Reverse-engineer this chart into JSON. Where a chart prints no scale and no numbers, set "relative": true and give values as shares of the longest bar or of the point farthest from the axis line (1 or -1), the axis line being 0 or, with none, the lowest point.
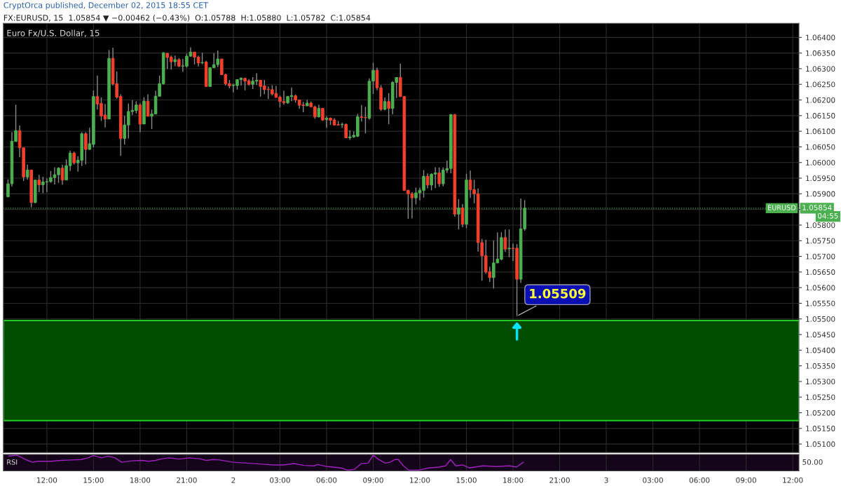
{
  "chart_data": [
    {
      "type": "candlestick",
      "title": "Euro Fx/U.S. Dollar, 15",
      "subtitle": "FX:EURUSD, 15  1.05854 ▼ −0.00462 (−0.43%)  O:1.05788  H:1.05880  L:1.05782  C:1.05854",
      "annotations": [
        "CryptOrca published, December 02, 2015 18:55 CET",
        "1.05854",
        "04:55",
        {
          "text": "1.05509",
          "x": "2015-12-02T18:15",
          "y": 1.05509
        }
      ],
      "x": [
        "2015-12-01T09:30",
        "2015-12-01T09:45",
        "2015-12-01T10:00",
        "2015-12-01T10:15",
        "2015-12-01T10:30",
        "2015-12-01T10:45",
        "2015-12-01T11:00",
        "2015-12-01T11:15",
        "2015-12-01T11:30",
        "2015-12-01T11:45",
        "2015-12-01T12:00",
        "2015-12-01T12:15",
        "2015-12-01T12:30",
        "2015-12-01T12:45",
        "2015-12-01T13:00",
        "2015-12-01T13:15",
        "2015-12-01T13:30",
        "2015-12-01T13:45",
        "2015-12-01T14:00",
        "2015-12-01T14:15",
        "2015-12-01T14:30",
        "2015-12-01T14:45",
        "2015-12-01T15:00",
        "2015-12-01T15:15",
        "2015-12-01T15:30",
        "2015-12-01T15:45",
        "2015-12-01T16:00",
        "2015-12-01T16:15",
        "2015-12-01T16:30",
        "2015-12-01T16:45",
        "2015-12-01T17:00",
        "2015-12-01T17:15",
        "2015-12-01T17:30",
        "2015-12-01T17:45",
        "2015-12-01T18:00",
        "2015-12-01T18:15",
        "2015-12-01T18:30",
        "2015-12-01T18:45",
        "2015-12-01T19:00",
        "2015-12-01T19:15",
        "2015-12-01T19:30",
        "2015-12-01T19:45",
        "2015-12-01T20:00",
        "2015-12-01T20:15",
        "2015-12-01T20:30",
        "2015-12-01T20:45",
        "2015-12-01T21:00",
        "2015-12-01T21:15",
        "2015-12-01T21:30",
        "2015-12-01T21:45",
        "2015-12-01T22:00",
        "2015-12-01T22:15",
        "2015-12-01T22:30",
        "2015-12-01T22:45",
        "2015-12-01T23:00",
        "2015-12-01T23:15",
        "2015-12-01T23:30",
        "2015-12-01T23:45",
        "2015-12-02T00:00",
        "2015-12-02T00:15",
        "2015-12-02T00:30",
        "2015-12-02T00:45",
        "2015-12-02T01:00",
        "2015-12-02T01:15",
        "2015-12-02T01:30",
        "2015-12-02T01:45",
        "2015-12-02T02:00",
        "2015-12-02T02:15",
        "2015-12-02T02:30",
        "2015-12-02T02:45",
        "2015-12-02T03:00",
        "2015-12-02T03:15",
        "2015-12-02T03:30",
        "2015-12-02T03:45",
        "2015-12-02T04:00",
        "2015-12-02T04:15",
        "2015-12-02T04:30",
        "2015-12-02T04:45",
        "2015-12-02T05:00",
        "2015-12-02T05:15",
        "2015-12-02T05:30",
        "2015-12-02T05:45",
        "2015-12-02T06:00",
        "2015-12-02T06:15",
        "2015-12-02T06:30",
        "2015-12-02T06:45",
        "2015-12-02T07:00",
        "2015-12-02T07:15",
        "2015-12-02T07:30",
        "2015-12-02T07:45",
        "2015-12-02T08:00",
        "2015-12-02T08:15",
        "2015-12-02T08:30",
        "2015-12-02T08:45",
        "2015-12-02T09:00",
        "2015-12-02T09:15",
        "2015-12-02T09:30",
        "2015-12-02T09:45",
        "2015-12-02T10:00",
        "2015-12-02T10:15",
        "2015-12-02T10:30",
        "2015-12-02T10:45",
        "2015-12-02T11:00",
        "2015-12-02T11:15",
        "2015-12-02T11:30",
        "2015-12-02T11:45",
        "2015-12-02T12:00",
        "2015-12-02T12:15",
        "2015-12-02T12:30",
        "2015-12-02T12:45",
        "2015-12-02T13:00",
        "2015-12-02T13:15",
        "2015-12-02T13:30",
        "2015-12-02T13:45",
        "2015-12-02T14:00",
        "2015-12-02T14:15",
        "2015-12-02T14:30",
        "2015-12-02T14:45",
        "2015-12-02T15:00",
        "2015-12-02T15:15",
        "2015-12-02T15:30",
        "2015-12-02T15:45",
        "2015-12-02T16:00",
        "2015-12-02T16:15",
        "2015-12-02T16:30",
        "2015-12-02T16:45",
        "2015-12-02T17:00",
        "2015-12-02T17:15",
        "2015-12-02T17:30",
        "2015-12-02T17:45",
        "2015-12-02T18:00",
        "2015-12-02T18:15",
        "2015-12-02T18:30",
        "2015-12-02T18:45"
      ],
      "ohlc": [
        [
          1.0589,
          1.05946,
          1.0589,
          1.05932
        ],
        [
          1.05932,
          1.06097,
          1.05923,
          1.06068
        ],
        [
          1.06067,
          1.06185,
          1.06067,
          1.06102
        ],
        [
          1.06102,
          1.06118,
          1.06017,
          1.06047
        ],
        [
          1.06047,
          1.06047,
          1.05941,
          1.05954
        ],
        [
          1.05954,
          1.05993,
          1.05945,
          1.05976
        ],
        [
          1.05976,
          1.05976,
          1.05857,
          1.05872
        ],
        [
          1.05872,
          1.05944,
          1.0587,
          1.05944
        ],
        [
          1.05944,
          1.05961,
          1.05905,
          1.05929
        ],
        [
          1.05929,
          1.05954,
          1.05902,
          1.05938
        ],
        [
          1.05938,
          1.05949,
          1.05905,
          1.05939
        ],
        [
          1.05939,
          1.05973,
          1.05935,
          1.05952
        ],
        [
          1.05952,
          1.05984,
          1.0593,
          1.05961
        ],
        [
          1.05961,
          1.05985,
          1.05935,
          1.05982
        ],
        [
          1.05982,
          1.05993,
          1.05929,
          1.05944
        ],
        [
          1.05944,
          1.0601,
          1.05944,
          1.0599
        ],
        [
          1.0599,
          1.06038,
          1.05973,
          1.0603
        ],
        [
          1.0603,
          1.06035,
          1.05994,
          1.05999
        ],
        [
          1.05999,
          1.0602,
          1.05971,
          1.06007
        ],
        [
          1.06007,
          1.06097,
          1.05989,
          1.06092
        ],
        [
          1.06092,
          1.06097,
          1.05994,
          1.06042
        ],
        [
          1.06042,
          1.06111,
          1.0604,
          1.0606
        ],
        [
          1.06058,
          1.0623,
          1.06049,
          1.06211
        ],
        [
          1.06211,
          1.06278,
          1.06169,
          1.06187
        ],
        [
          1.06189,
          1.06208,
          1.06133,
          1.06149
        ],
        [
          1.06152,
          1.06187,
          1.06112,
          1.06139
        ],
        [
          1.06139,
          1.0636,
          1.06139,
          1.06333
        ],
        [
          1.06333,
          1.06367,
          1.06246,
          1.06251
        ],
        [
          1.06252,
          1.06291,
          1.06204,
          1.06209
        ],
        [
          1.06211,
          1.06218,
          1.06021,
          1.06077
        ],
        [
          1.06077,
          1.06149,
          1.06057,
          1.0612
        ],
        [
          1.0612,
          1.06189,
          1.06077,
          1.06163
        ],
        [
          1.06163,
          1.06199,
          1.06152,
          1.06167
        ],
        [
          1.06166,
          1.06196,
          1.06157,
          1.06184
        ],
        [
          1.06184,
          1.06189,
          1.06097,
          1.06123
        ],
        [
          1.06123,
          1.06209,
          1.06123,
          1.06196
        ],
        [
          1.06196,
          1.06218,
          1.06148,
          1.06148
        ],
        [
          1.06148,
          1.06169,
          1.06107,
          1.06155
        ],
        [
          1.06155,
          1.0623,
          1.06155,
          1.06212
        ],
        [
          1.06212,
          1.06278,
          1.06211,
          1.06252
        ],
        [
          1.06252,
          1.06353,
          1.06249,
          1.06351
        ],
        [
          1.06349,
          1.06351,
          1.06299,
          1.06336
        ],
        [
          1.06337,
          1.06342,
          1.06297,
          1.06322
        ],
        [
          1.06322,
          1.06342,
          1.06308,
          1.06329
        ],
        [
          1.06329,
          1.06334,
          1.06305,
          1.06308
        ],
        [
          1.06308,
          1.06331,
          1.0629,
          1.06309
        ],
        [
          1.06308,
          1.06348,
          1.06303,
          1.0634
        ],
        [
          1.0634,
          1.06368,
          1.06338,
          1.06353
        ],
        [
          1.06353,
          1.06353,
          1.06314,
          1.06337
        ],
        [
          1.06337,
          1.06342,
          1.06307,
          1.06318
        ],
        [
          1.06319,
          1.06351,
          1.06314,
          1.0632
        ],
        [
          1.06321,
          1.06325,
          1.06243,
          1.06243
        ],
        [
          1.06243,
          1.06305,
          1.06243,
          1.06303
        ],
        [
          1.06303,
          1.06349,
          1.06303,
          1.06313
        ],
        [
          1.06313,
          1.06358,
          1.06305,
          1.06331
        ],
        [
          1.06331,
          1.06331,
          1.06281,
          1.06281
        ],
        [
          1.06281,
          1.06284,
          1.06246,
          1.06252
        ],
        [
          1.06252,
          1.06264,
          1.06237,
          1.06245
        ],
        [
          1.06246,
          1.06252,
          1.06224,
          1.06248
        ],
        [
          1.06246,
          1.06267,
          1.06233,
          1.06265
        ],
        [
          1.06265,
          1.06272,
          1.06246,
          1.0627
        ],
        [
          1.06269,
          1.06271,
          1.06231,
          1.0626
        ],
        [
          1.06261,
          1.06267,
          1.06246,
          1.0625
        ],
        [
          1.0625,
          1.06273,
          1.06235,
          1.0626
        ],
        [
          1.0626,
          1.06286,
          1.06248,
          1.06263
        ],
        [
          1.06263,
          1.06264,
          1.06211,
          1.06243
        ],
        [
          1.06245,
          1.06264,
          1.06218,
          1.06233
        ],
        [
          1.06234,
          1.06243,
          1.06203,
          1.06233
        ],
        [
          1.06233,
          1.06247,
          1.06214,
          1.06219
        ],
        [
          1.06221,
          1.06245,
          1.06208,
          1.06208
        ],
        [
          1.06209,
          1.06214,
          1.06176,
          1.06195
        ],
        [
          1.06195,
          1.0623,
          1.06185,
          1.06191
        ],
        [
          1.06191,
          1.06213,
          1.06187,
          1.06211
        ],
        [
          1.06211,
          1.0624,
          1.06196,
          1.06214
        ],
        [
          1.06213,
          1.06217,
          1.06191,
          1.062
        ],
        [
          1.062,
          1.06202,
          1.06172,
          1.06183
        ],
        [
          1.06184,
          1.06194,
          1.06161,
          1.06182
        ],
        [
          1.06181,
          1.062,
          1.06181,
          1.0619
        ],
        [
          1.0619,
          1.06195,
          1.06178,
          1.06178
        ],
        [
          1.06178,
          1.06182,
          1.0614,
          1.06146
        ],
        [
          1.06146,
          1.06185,
          1.06144,
          1.06173
        ],
        [
          1.06173,
          1.06174,
          1.06133,
          1.06136
        ],
        [
          1.06137,
          1.06148,
          1.06111,
          1.06142
        ],
        [
          1.06142,
          1.06144,
          1.0612,
          1.06135
        ],
        [
          1.06136,
          1.06142,
          1.06119,
          1.0612
        ],
        [
          1.06121,
          1.06133,
          1.06119,
          1.0612
        ],
        [
          1.06121,
          1.06127,
          1.06111,
          1.06122
        ],
        [
          1.06122,
          1.06125,
          1.06079,
          1.06079
        ],
        [
          1.06079,
          1.06103,
          1.06072,
          1.06082
        ],
        [
          1.06082,
          1.06099,
          1.06079,
          1.06087
        ],
        [
          1.06084,
          1.06155,
          1.06081,
          1.06146
        ],
        [
          1.06146,
          1.06184,
          1.06131,
          1.06144
        ],
        [
          1.06144,
          1.06178,
          1.06093,
          1.06143
        ],
        [
          1.06142,
          1.06269,
          1.06137,
          1.0626
        ],
        [
          1.0626,
          1.06319,
          1.06219,
          1.06295
        ],
        [
          1.06295,
          1.06303,
          1.06231,
          1.06239
        ],
        [
          1.06239,
          1.06247,
          1.06165,
          1.0617
        ],
        [
          1.0617,
          1.06208,
          1.06167,
          1.06195
        ],
        [
          1.06195,
          1.06222,
          1.06123,
          1.06173
        ],
        [
          1.06173,
          1.0626,
          1.06154,
          1.06256
        ],
        [
          1.06256,
          1.06273,
          1.06206,
          1.06272
        ],
        [
          1.06272,
          1.06316,
          1.06209,
          1.06211
        ],
        [
          1.06211,
          1.06213,
          1.05909,
          1.05911
        ],
        [
          1.05911,
          1.05913,
          1.0582,
          1.059
        ],
        [
          1.059,
          1.05905,
          1.05821,
          1.05887
        ],
        [
          1.05887,
          1.0592,
          1.05866,
          1.05903
        ],
        [
          1.05903,
          1.0592,
          1.05879,
          1.05911
        ],
        [
          1.05911,
          1.05976,
          1.05888,
          1.05956
        ],
        [
          1.05956,
          1.05965,
          1.05917,
          1.05928
        ],
        [
          1.05928,
          1.05965,
          1.05911,
          1.05963
        ],
        [
          1.05963,
          1.05985,
          1.05918,
          1.05967
        ],
        [
          1.05967,
          1.05984,
          1.05922,
          1.05932
        ],
        [
          1.05932,
          1.05984,
          1.05924,
          1.05976
        ],
        [
          1.05976,
          1.06006,
          1.05967,
          1.05981
        ],
        [
          1.05981,
          1.06155,
          1.05965,
          1.06153
        ],
        [
          1.06153,
          1.06155,
          1.05827,
          1.05835
        ],
        [
          1.05835,
          1.05883,
          1.05786,
          1.05855
        ],
        [
          1.05855,
          1.05867,
          1.05793,
          1.05803
        ],
        [
          1.05803,
          1.05964,
          1.0579,
          1.05944
        ],
        [
          1.05944,
          1.05974,
          1.05887,
          1.05913
        ],
        [
          1.05913,
          1.05945,
          1.0587,
          1.059
        ],
        [
          1.059,
          1.05917,
          1.05715,
          1.05744
        ],
        [
          1.05744,
          1.05756,
          1.05622,
          1.05702
        ],
        [
          1.05702,
          1.05753,
          1.05644,
          1.0565
        ],
        [
          1.05651,
          1.05667,
          1.05618,
          1.05632
        ],
        [
          1.05632,
          1.05751,
          1.05597,
          1.05679
        ],
        [
          1.05679,
          1.05777,
          1.05678,
          1.05691
        ],
        [
          1.05691,
          1.05777,
          1.05687,
          1.0576
        ],
        [
          1.0576,
          1.05786,
          1.05714,
          1.05723
        ],
        [
          1.05724,
          1.05786,
          1.05697,
          1.05726
        ],
        [
          1.05726,
          1.05741,
          1.05685,
          1.05725
        ],
        [
          1.05726,
          1.05739,
          1.05509,
          1.05627
        ],
        [
          1.05627,
          1.05885,
          1.05615,
          1.05788
        ],
        [
          1.05788,
          1.0588,
          1.05782,
          1.05854
        ]
      ],
      "ylim": [
        1.05073,
        1.06445
      ],
      "yticks": [
        {
          "value": 1.051,
          "label": "1.05100"
        },
        {
          "value": 1.0515,
          "label": "1.05150"
        },
        {
          "value": 1.052,
          "label": "1.05200"
        },
        {
          "value": 1.0525,
          "label": "1.05250"
        },
        {
          "value": 1.053,
          "label": "1.05300"
        },
        {
          "value": 1.0535,
          "label": "1.05350"
        },
        {
          "value": 1.054,
          "label": "1.05400"
        },
        {
          "value": 1.0545,
          "label": "1.05450"
        },
        {
          "value": 1.055,
          "label": "1.05500"
        },
        {
          "value": 1.0555,
          "label": "1.05550"
        },
        {
          "value": 1.056,
          "label": "1.05600"
        },
        {
          "value": 1.0565,
          "label": "1.05650"
        },
        {
          "value": 1.057,
          "label": "1.05700"
        },
        {
          "value": 1.0575,
          "label": "1.05750"
        },
        {
          "value": 1.058,
          "label": "1.05800"
        },
        {
          "value": 1.0585,
          "label": null
        },
        {
          "value": 1.059,
          "label": "1.05900"
        },
        {
          "value": 1.0595,
          "label": "1.05950"
        },
        {
          "value": 1.06,
          "label": "1.06000"
        },
        {
          "value": 1.0605,
          "label": "1.06050"
        },
        {
          "value": 1.061,
          "label": "1.06100"
        },
        {
          "value": 1.0615,
          "label": "1.06150"
        },
        {
          "value": 1.062,
          "label": "1.06200"
        },
        {
          "value": 1.0625,
          "label": "1.06250"
        },
        {
          "value": 1.063,
          "label": "1.06300"
        },
        {
          "value": 1.0635,
          "label": "1.06350"
        },
        {
          "value": 1.064,
          "label": "1.06400"
        }
      ],
      "xlim": [
        "2015-12-01T09:12",
        "2015-12-03T12:24"
      ],
      "xticks": [
        {
          "value": "2015-12-01T12:00",
          "label": null
        },
        {
          "value": "2015-12-01T15:00",
          "label": null
        },
        {
          "value": "2015-12-01T18:00",
          "label": null
        },
        {
          "value": "2015-12-01T21:00",
          "label": null
        },
        {
          "value": "2015-12-02",
          "label": null
        },
        {
          "value": "2015-12-02T03:00",
          "label": null
        },
        {
          "value": "2015-12-02T06:00",
          "label": null
        },
        {
          "value": "2015-12-02T09:00",
          "label": null
        },
        {
          "value": "2015-12-02T12:00",
          "label": null
        },
        {
          "value": "2015-12-02T15:00",
          "label": null
        },
        {
          "value": "2015-12-02T18:00",
          "label": null
        },
        {
          "value": "2015-12-02T21:00",
          "label": null
        },
        {
          "value": "2015-12-03",
          "label": null
        },
        {
          "value": "2015-12-03T03:00",
          "label": null
        },
        {
          "value": "2015-12-03T06:00",
          "label": null
        },
        {
          "value": "2015-12-03T09:00",
          "label": null
        },
        {
          "value": "2015-12-03T12:00",
          "label": null
        }
      ],
      "tick_labels": "y",
      "grid": true,
      "ref_lines": [
        {
          "axis": "y",
          "value": 1.05854,
          "label": "EURUSD",
          "color": "#4caf50",
          "line_style": "dotted"
        }
      ],
      "bands": [
        {
          "axis": "y",
          "from": 1.05175,
          "to": 1.05495,
          "color": "#004d00"
        }
      ]
    },
    {
      "type": "line",
      "title": "RSI",
      "relative": true,
      "annotations": [
        "50.00"
      ],
      "x": [
        "2015-12-01T09:33",
        "2015-12-01T10:05",
        "2015-12-01T10:38",
        "2015-12-01T11:04",
        "2015-12-01T11:24",
        "2015-12-01T12:16",
        "2015-12-01T12:55",
        "2015-12-01T13:34",
        "2015-12-01T14:13",
        "2015-12-01T14:39",
        "2015-12-01T14:59",
        "2015-12-01T15:31",
        "2015-12-01T15:57",
        "2015-12-01T16:23",
        "2015-12-01T16:49",
        "2015-12-01T17:28",
        "2015-12-01T18:07",
        "2015-12-01T18:34",
        "2015-12-01T18:59",
        "2015-12-01T19:26",
        "2015-12-01T19:52",
        "2015-12-01T20:31",
        "2015-12-01T21:10",
        "2015-12-01T21:49",
        "2015-12-01T22:15",
        "2015-12-01T22:41",
        "2015-12-01T23:07",
        "2015-12-01T23:59",
        "2015-12-02T00:52",
        "2015-12-02T01:43",
        "2015-12-02T02:35",
        "2015-12-02T03:14",
        "2015-12-02T03:53",
        "2015-12-02T04:33",
        "2015-12-02T05:12",
        "2015-12-02T05:25",
        "2015-12-02T06:04",
        "2015-12-02T06:56",
        "2015-12-02T07:22",
        "2015-12-02T07:48",
        "2015-12-02T08:14",
        "2015-12-02T08:40",
        "2015-12-02T09:00",
        "2015-12-02T09:19",
        "2015-12-02T09:46",
        "2015-12-02T10:05",
        "2015-12-02T10:25",
        "2015-12-02T10:37",
        "2015-12-02T10:57",
        "2015-12-02T11:17",
        "2015-12-02T11:56",
        "2015-12-02T12:35",
        "2015-12-02T13:14",
        "2015-12-02T13:40",
        "2015-12-02T13:59",
        "2015-12-02T14:19",
        "2015-12-02T14:45",
        "2015-12-02T15:11",
        "2015-12-02T16:03",
        "2015-12-02T16:55",
        "2015-12-02T17:47",
        "2015-12-02T18:13",
        "2015-12-02T18:40"
      ],
      "series": [
        {
          "color": "#a020c0",
          "values": [
            0.94,
            1,
            0.71,
            0.53,
            0.59,
            0.59,
            0.65,
            0.68,
            0.71,
            0.82,
            0.97,
            0.82,
            0.94,
            0.82,
            0.53,
            0.62,
            0.65,
            0.59,
            0.65,
            0.76,
            0.82,
            0.74,
            0.82,
            0.76,
            0.65,
            0.71,
            0.68,
            0.53,
            0.47,
            0.41,
            0.35,
            0.35,
            0.44,
            0.32,
            0.29,
            0.38,
            0.24,
            0.15,
            0,
            0.06,
            0.44,
            0.47,
            1,
            0.74,
            0.47,
            0.53,
            0.71,
            0.71,
            0.29,
            0,
            0,
            0.15,
            0.21,
            0.29,
            0.71,
            0.29,
            0.35,
            0.15,
            0.29,
            0.24,
            0.29,
            0.21,
            0.53
          ]
        }
      ],
      "xlim": [
        "2015-12-01T09:12",
        "2015-12-03T12:24"
      ],
      "xticks": [
        {
          "value": "2015-12-01T12:00",
          "label": "12:00"
        },
        {
          "value": "2015-12-01T15:00",
          "label": "15:00"
        },
        {
          "value": "2015-12-01T18:00",
          "label": "18:00"
        },
        {
          "value": "2015-12-01T21:00",
          "label": "21:00"
        },
        {
          "value": "2015-12-02",
          "label": "2"
        },
        {
          "value": "2015-12-02T03:00",
          "label": "03:00"
        },
        {
          "value": "2015-12-02T06:00",
          "label": "06:00"
        },
        {
          "value": "2015-12-02T09:00",
          "label": "09:00"
        },
        {
          "value": "2015-12-02T12:00",
          "label": "12:00"
        },
        {
          "value": "2015-12-02T15:00",
          "label": "15:00"
        },
        {
          "value": "2015-12-02T18:00",
          "label": "18:00"
        },
        {
          "value": "2015-12-02T21:00",
          "label": "21:00"
        },
        {
          "value": "2015-12-03",
          "label": "3"
        },
        {
          "value": "2015-12-03T03:00",
          "label": "03:00"
        },
        {
          "value": "2015-12-03T06:00",
          "label": "06:00"
        },
        {
          "value": "2015-12-03T09:00",
          "label": "09:00"
        },
        {
          "value": "2015-12-03T12:00",
          "label": "12:00"
        }
      ],
      "tick_labels": "x",
      "grid": "x"
    }
  ]
}
